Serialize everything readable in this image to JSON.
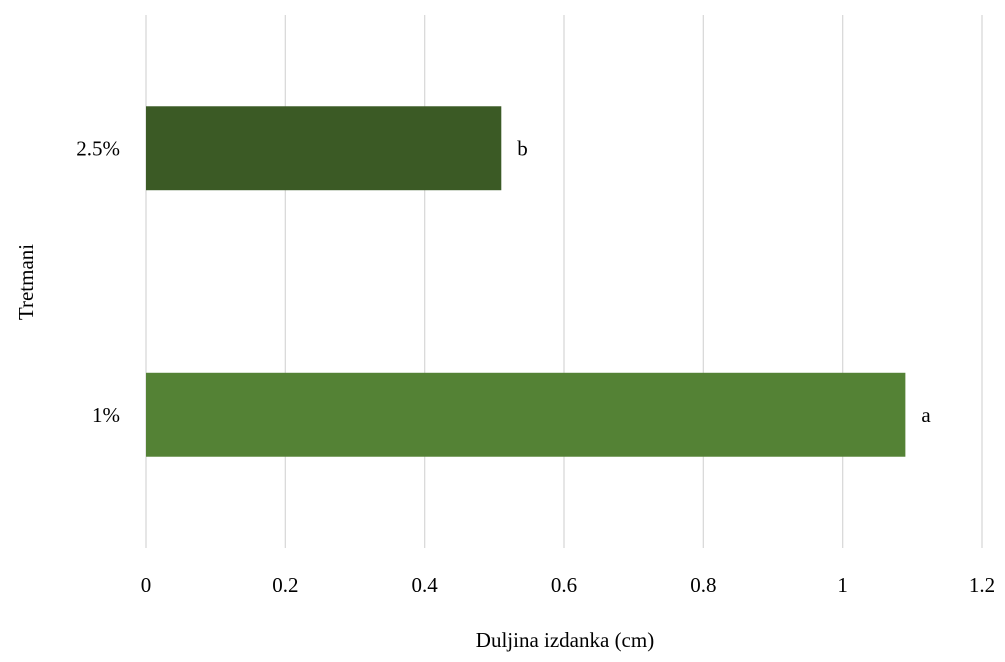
{
  "chart_data": {
    "type": "bar",
    "orientation": "horizontal",
    "categories": [
      "2.5%",
      "1%"
    ],
    "values": [
      0.51,
      1.09
    ],
    "data_labels": [
      "b",
      "a"
    ],
    "colors": [
      "#3b5a25",
      "#548235"
    ],
    "xlabel": "Duljina izdanka (cm)",
    "ylabel": "Tretmani",
    "xlim": [
      0,
      1.2
    ],
    "xticks": [
      "0",
      "0.2",
      "0.4",
      "0.6",
      "0.8",
      "1",
      "1.2"
    ],
    "grid": "vertical",
    "legend": "none"
  }
}
